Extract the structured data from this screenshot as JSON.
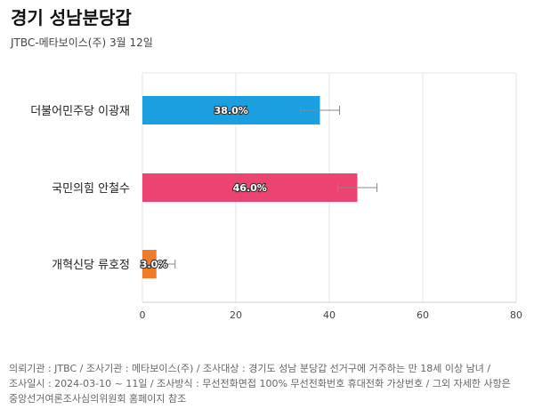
{
  "title": "경기 성남분당갑",
  "subtitle": "JTBC-메타보이스(주) 3월 12일",
  "colors": {
    "background": "#ffffff",
    "grid": "#e6e6e6",
    "error_bar": "#888888"
  },
  "chart_data": {
    "type": "bar",
    "orientation": "horizontal",
    "categories": [
      "더불어민주당 이광재",
      "국민의힘 안철수",
      "개혁신당 류호정"
    ],
    "values": [
      38.0,
      46.0,
      3.0
    ],
    "value_labels": [
      "38.0%",
      "46.0%",
      "3.0%"
    ],
    "error_ranges": [
      [
        33.8,
        42.2
      ],
      [
        41.8,
        50.2
      ],
      [
        1.0,
        7.0
      ]
    ],
    "colors": [
      "#1a9fe0",
      "#ec4370",
      "#f07c2a"
    ],
    "xlim": [
      0,
      80
    ],
    "xticks": [
      0,
      20,
      40,
      60,
      80
    ],
    "grid": true
  },
  "footnote": {
    "line1": "의뢰기관 : JTBC / 조사기관 : 메타보이스(주) / 조사대상 : 경기도 성남 분당갑 선거구에 거주하는 만 18세 이상 남녀 /",
    "line2": "조사일시 : 2024-03-10 ~ 11일 / 조사방식 : 무선전화면접 100% 무선전화번호 휴대전화 가상번호 / 그외 자세한 사항은",
    "line3": "중앙선거여론조사심의위원회 홈페이지 참조"
  }
}
